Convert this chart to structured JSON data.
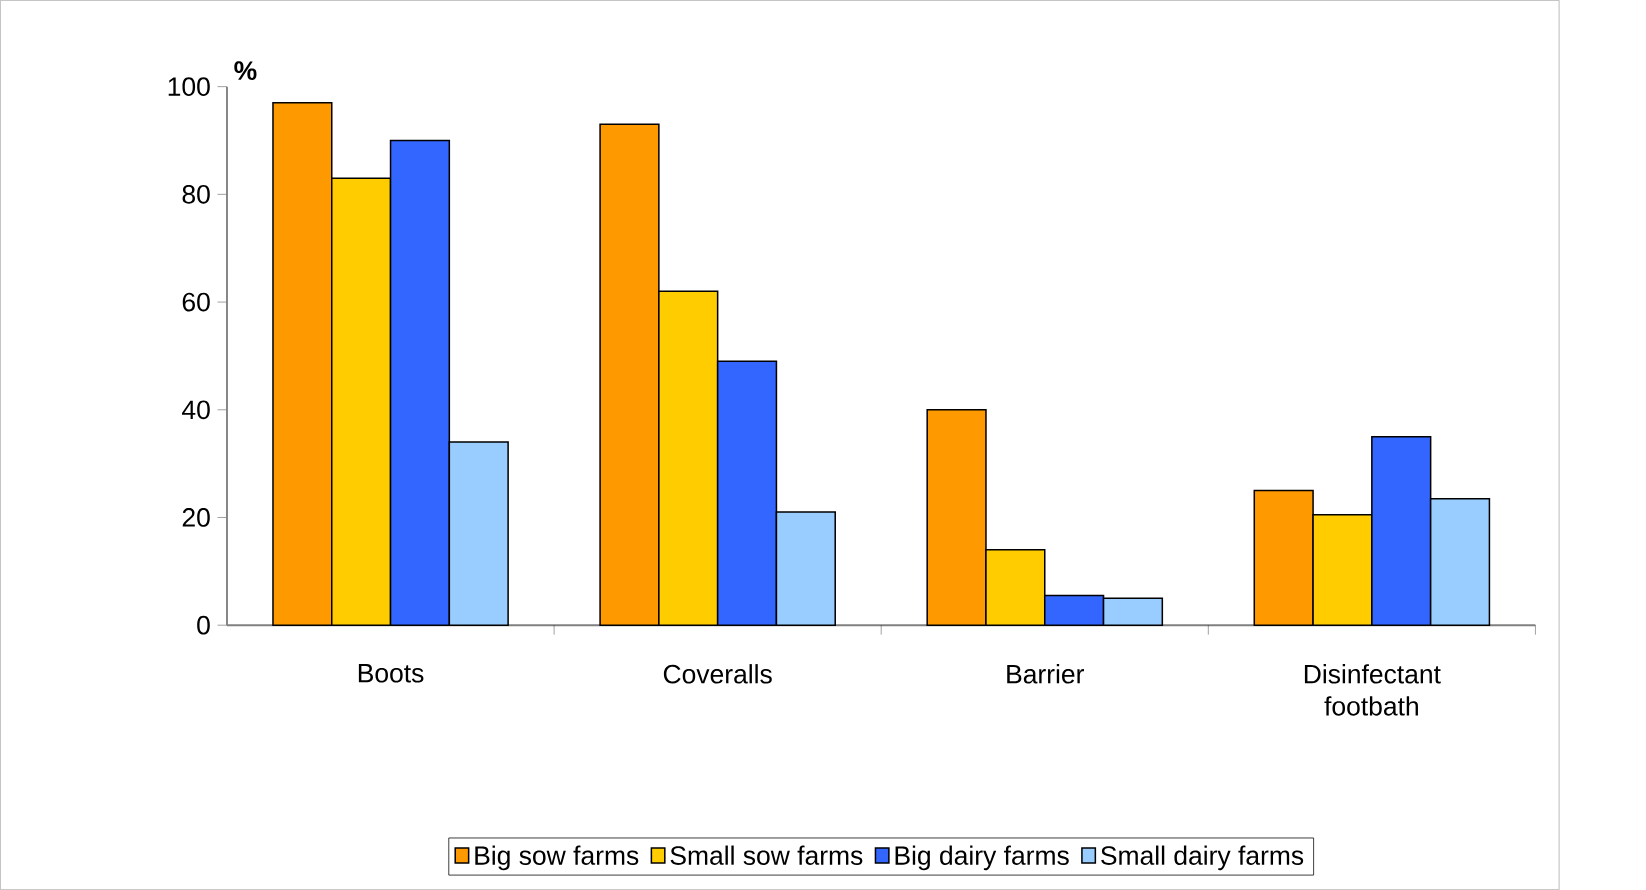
{
  "chart_data": {
    "type": "bar",
    "ylabel": "%",
    "categories": [
      "Boots",
      "Coveralls",
      "Barrier",
      "Disinfectant footbath"
    ],
    "series": [
      {
        "name": "Big sow farms",
        "color": "#ff9900",
        "values": [
          97,
          93,
          40,
          25
        ]
      },
      {
        "name": "Small sow farms",
        "color": "#ffcc00",
        "values": [
          83,
          62,
          14,
          20.5
        ]
      },
      {
        "name": "Big dairy farms",
        "color": "#3366ff",
        "values": [
          90,
          49,
          5.5,
          35
        ]
      },
      {
        "name": "Small dairy farms",
        "color": "#99ccff",
        "values": [
          34,
          21,
          5,
          23.5
        ]
      }
    ],
    "ylim": [
      0,
      100
    ],
    "yticks": [
      0,
      20,
      40,
      60,
      80,
      100
    ],
    "legend": "bottom"
  }
}
